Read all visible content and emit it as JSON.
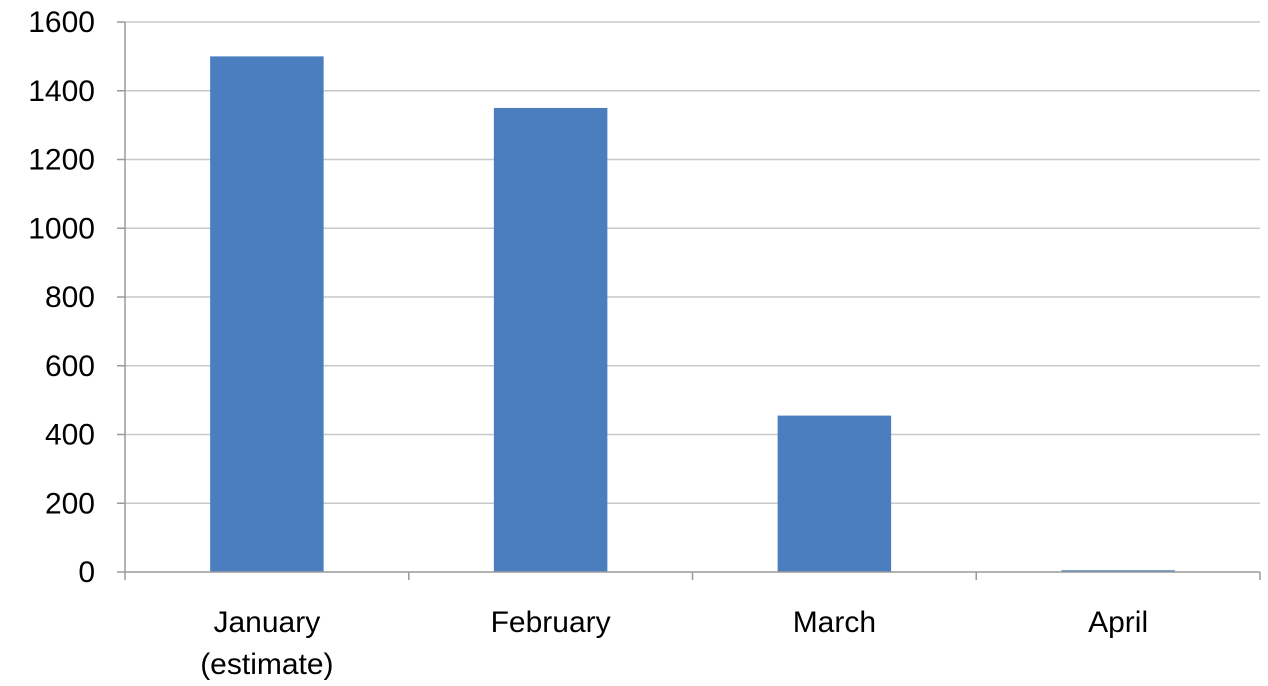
{
  "chart_data": {
    "type": "bar",
    "categories": [
      [
        "January",
        "(estimate)"
      ],
      [
        "February"
      ],
      [
        "March"
      ],
      [
        "April"
      ]
    ],
    "values": [
      1500,
      1350,
      455,
      5
    ],
    "ylim": [
      0,
      1600
    ],
    "yticks": [
      0,
      200,
      400,
      600,
      800,
      1000,
      1200,
      1400,
      1600
    ],
    "grid": true,
    "bar_color": "#4a7ebf",
    "title": "",
    "xlabel": "",
    "ylabel": ""
  }
}
